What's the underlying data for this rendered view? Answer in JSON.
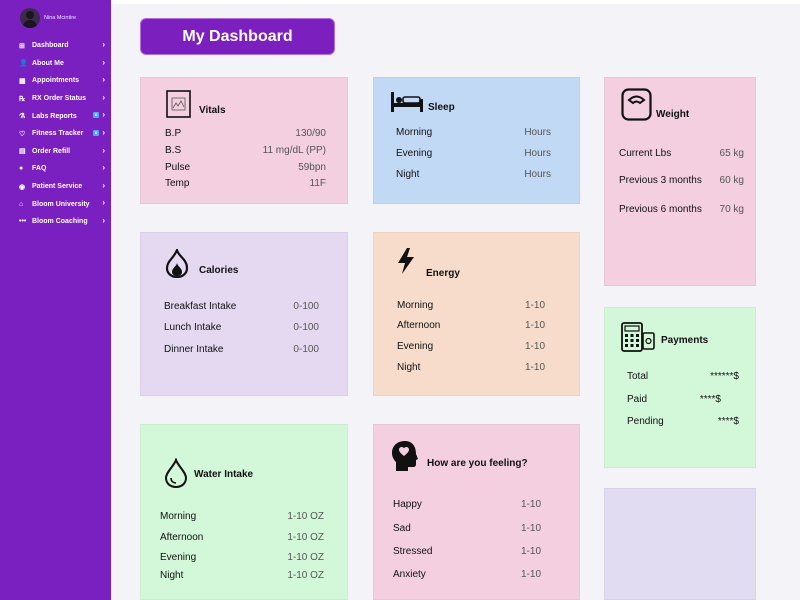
{
  "profile": {
    "name": "Nina Mcintire"
  },
  "sidebar": {
    "items": [
      {
        "label": "Dashboard",
        "icon": "dashboard-icon",
        "glyph": "⊞"
      },
      {
        "label": "About Me",
        "icon": "user-icon",
        "glyph": "👤"
      },
      {
        "label": "Appointments",
        "icon": "grid-icon",
        "glyph": "▦"
      },
      {
        "label": "RX Order Status",
        "icon": "pharmacy-icon",
        "glyph": "℞"
      },
      {
        "label": "Labs Reports",
        "icon": "flask-icon",
        "glyph": "⚗",
        "badge": "8"
      },
      {
        "label": "Fitness Tracker",
        "icon": "heart-icon",
        "glyph": "♡",
        "badge": "8"
      },
      {
        "label": "Order Refill",
        "icon": "cart-icon",
        "glyph": "▤"
      },
      {
        "label": "FAQ",
        "icon": "chat-icon",
        "glyph": "●"
      },
      {
        "label": "Patient Service",
        "icon": "service-icon",
        "glyph": "◉"
      },
      {
        "label": "Bloom University",
        "icon": "university-icon",
        "glyph": "⌂"
      },
      {
        "label": "Bloom Coaching",
        "icon": "dots-icon",
        "glyph": "•••"
      }
    ]
  },
  "header": {
    "title": "My Dashboard"
  },
  "vitals": {
    "title": "Vitals",
    "rows": [
      {
        "label": "B.P",
        "value": "130/90"
      },
      {
        "label": "B.S",
        "value": "11 mg/dL (PP)"
      },
      {
        "label": "Pulse",
        "value": "59bpn"
      },
      {
        "label": "Temp",
        "value": "11F"
      }
    ]
  },
  "sleep": {
    "title": "Sleep",
    "rows": [
      {
        "label": "Morning",
        "value": "Hours"
      },
      {
        "label": "Evening",
        "value": "Hours"
      },
      {
        "label": "Night",
        "value": "Hours"
      }
    ]
  },
  "weight": {
    "title": "Weight",
    "rows": [
      {
        "label": "Current Lbs",
        "value": "65 kg"
      },
      {
        "label": "Previous 3 months",
        "value": "60 kg"
      },
      {
        "label": "Previous 6 months",
        "value": "70 kg"
      }
    ]
  },
  "calories": {
    "title": "Calories",
    "rows": [
      {
        "label": "Breakfast Intake",
        "value": "0-100"
      },
      {
        "label": "Lunch Intake",
        "value": "0-100"
      },
      {
        "label": "Dinner Intake",
        "value": "0-100"
      }
    ]
  },
  "energy": {
    "title": "Energy",
    "rows": [
      {
        "label": "Morning",
        "value": "1-10"
      },
      {
        "label": "Afternoon",
        "value": "1-10"
      },
      {
        "label": "Evening",
        "value": "1-10"
      },
      {
        "label": "Night",
        "value": "1-10"
      }
    ]
  },
  "payments": {
    "title": "Payments",
    "rows": [
      {
        "label": "Total",
        "value": "******$"
      },
      {
        "label": "Paid",
        "value": "****$"
      },
      {
        "label": "Pending",
        "value": "****$"
      }
    ]
  },
  "water": {
    "title": "Water Intake",
    "rows": [
      {
        "label": "Morning",
        "value": "1-10 OZ"
      },
      {
        "label": "Afternoon",
        "value": "1-10 OZ"
      },
      {
        "label": "Evening",
        "value": "1-10 OZ"
      },
      {
        "label": "Night",
        "value": "1-10 OZ"
      }
    ]
  },
  "feeling": {
    "title": "How are you feeling?",
    "rows": [
      {
        "label": "Happy",
        "value": "1-10"
      },
      {
        "label": "Sad",
        "value": "1-10"
      },
      {
        "label": "Stressed",
        "value": "1-10"
      },
      {
        "label": "Anxiety",
        "value": "1-10"
      }
    ]
  }
}
